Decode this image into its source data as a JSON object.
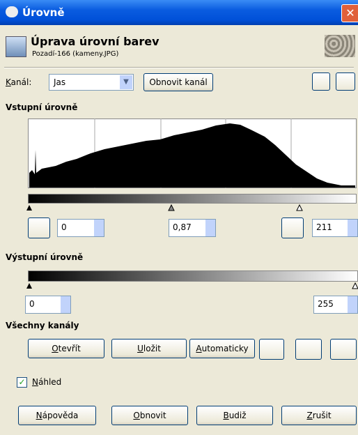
{
  "window": {
    "title": "Úrovně"
  },
  "header": {
    "title": "Úprava úrovní barev",
    "subtitle": "Pozadí-166 (kameny.JPG)"
  },
  "channel": {
    "label": "Kanál:",
    "value": "Jas",
    "reset_button": "Obnovit kanál"
  },
  "input_levels": {
    "heading": "Vstupní úrovně",
    "low": "0",
    "gamma": "0,87",
    "high": "211"
  },
  "output_levels": {
    "heading": "Výstupní úrovně",
    "low": "0",
    "high": "255"
  },
  "all_channels": {
    "heading": "Všechny kanály",
    "open": "Otevřít",
    "save": "Uložit",
    "auto": "Automaticky"
  },
  "preview": {
    "label": "Náhled"
  },
  "footer": {
    "help": "Nápověda",
    "reset": "Obnovit",
    "ok": "Budiž",
    "cancel": "Zrušit"
  }
}
